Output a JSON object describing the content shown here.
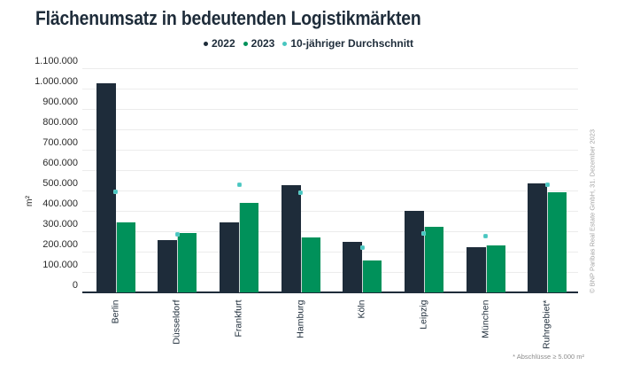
{
  "title": "Flächenumsatz in bedeutenden Logistikmärkten",
  "legend": [
    {
      "label": "2022",
      "color": "#1e2c3a"
    },
    {
      "label": "2023",
      "color": "#00915a"
    },
    {
      "label": "10-jähriger Durchschnitt",
      "color": "#48c6c0"
    }
  ],
  "footnote": "* Abschlüsse ≥ 5.000 m²",
  "source": "© BNP Paribas Real Estate GmbH, 31. Dezember 2023",
  "chart_data": {
    "type": "bar",
    "title": "Flächenumsatz in bedeutenden Logistikmärkten",
    "xlabel": "",
    "ylabel": "m²",
    "ylim": [
      0,
      1100000
    ],
    "ytick_step": 100000,
    "ytick_labels": [
      "0",
      "100.000",
      "200.000",
      "300.000",
      "400.000",
      "500.000",
      "600.000",
      "700.000",
      "800.000",
      "900.000",
      "1.000.000",
      "1.100.000"
    ],
    "grid": true,
    "legend_position": "top",
    "categories": [
      "Berlin",
      "Düsseldorf",
      "Frankfurt",
      "Hamburg",
      "Köln",
      "Leipzig",
      "München",
      "Ruhrgebiet*"
    ],
    "series": [
      {
        "name": "2022",
        "render": "bar",
        "color": "#1e2c3a",
        "values": [
          1025000,
          255000,
          345000,
          525000,
          250000,
          400000,
          220000,
          535000
        ]
      },
      {
        "name": "2023",
        "render": "bar",
        "color": "#00915a",
        "values": [
          345000,
          290000,
          440000,
          270000,
          155000,
          320000,
          230000,
          490000
        ]
      },
      {
        "name": "10-jähriger Durchschnitt",
        "render": "point",
        "color": "#48c6c0",
        "values": [
          495000,
          285000,
          530000,
          490000,
          220000,
          290000,
          275000,
          530000
        ]
      }
    ]
  }
}
